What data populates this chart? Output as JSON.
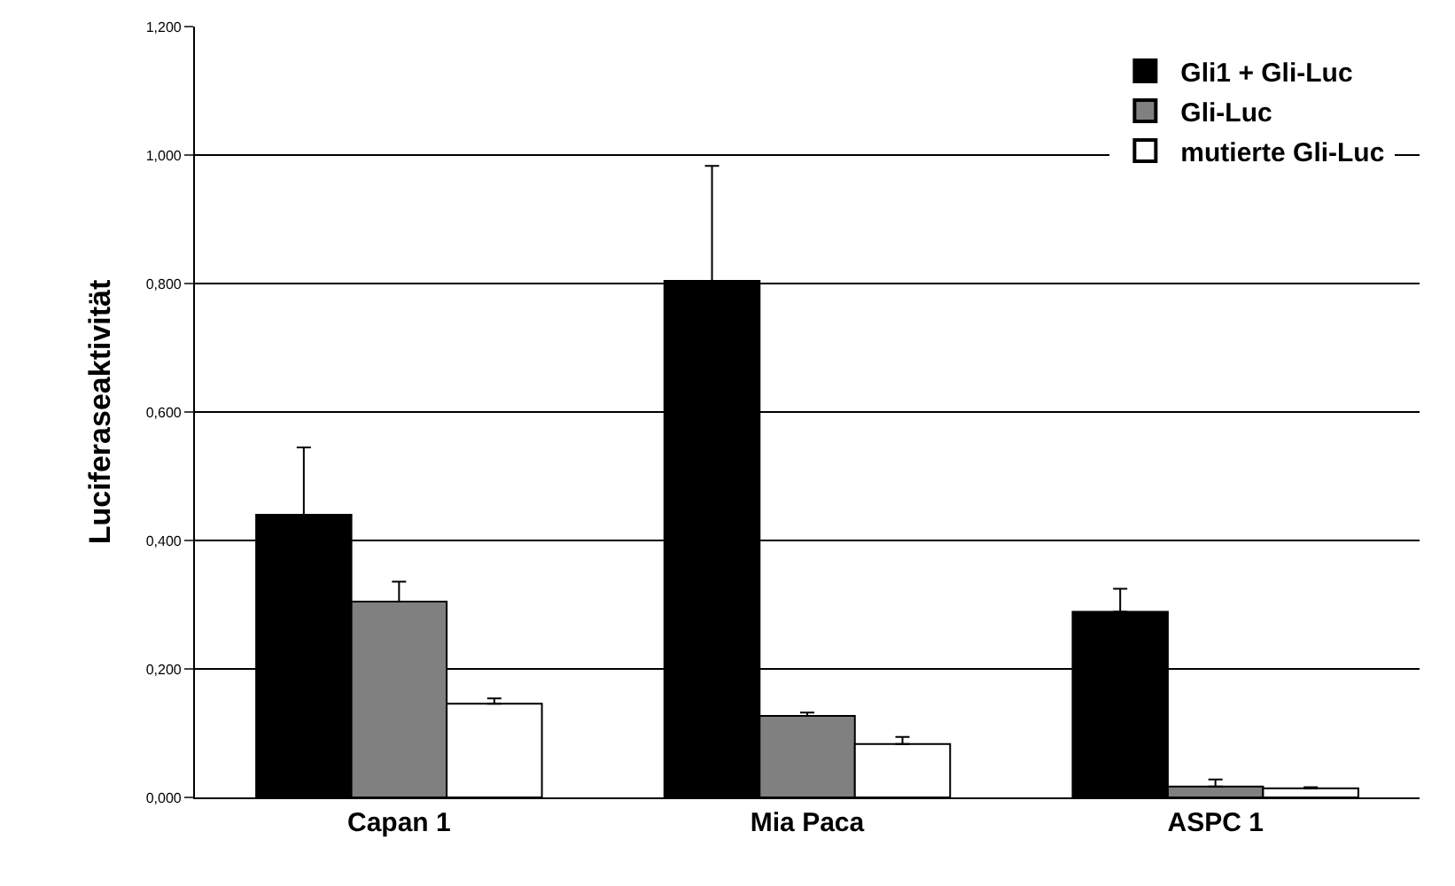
{
  "chart_data": {
    "type": "bar",
    "ylabel": "Luciferaseaktivität",
    "categories": [
      "Capan 1",
      "Mia Paca",
      "ASPC 1"
    ],
    "series": [
      {
        "name": "Gli1 + Gli-Luc",
        "color": "#000000",
        "values": [
          0.44,
          0.804,
          0.289
        ],
        "errors": [
          [
            0.44,
            0.545
          ],
          [
            0.804,
            0.983
          ],
          [
            0.289,
            0.325
          ]
        ]
      },
      {
        "name": "Gli-Luc",
        "color": "#808080",
        "values": [
          0.305,
          0.127,
          0.017
        ],
        "errors": [
          [
            0.305,
            0.336
          ],
          [
            0.127,
            0.132
          ],
          [
            0.017,
            0.028
          ]
        ]
      },
      {
        "name": "mutierte Gli-Luc",
        "color": "#ffffff",
        "values": [
          0.146,
          0.083,
          0.014
        ],
        "errors": [
          [
            0.146,
            0.154
          ],
          [
            0.083,
            0.094
          ],
          [
            0.014,
            0.016
          ]
        ]
      }
    ],
    "ylim": [
      0,
      1.2
    ],
    "yticks": [
      {
        "value": 0,
        "label": "0,000"
      },
      {
        "value": 0.2,
        "label": "0,200"
      },
      {
        "value": 0.4,
        "label": "0,400"
      },
      {
        "value": 0.6,
        "label": "0,600"
      },
      {
        "value": 0.8,
        "label": "0,800"
      },
      {
        "value": 1.0,
        "label": "1,000"
      },
      {
        "value": 1.2,
        "label": "1,200"
      }
    ],
    "grid": "y",
    "legend": "top right"
  }
}
